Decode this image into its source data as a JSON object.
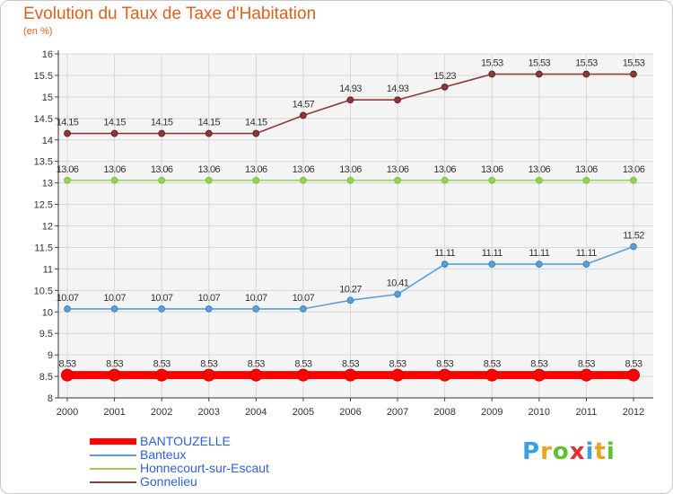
{
  "title": "Evolution du Taux de Taxe d'Habitation",
  "unit_label": "(en %)",
  "logo": {
    "letters": [
      "P",
      "r",
      "o",
      "x",
      "i",
      "t",
      "i"
    ],
    "colors": [
      "#3aa0e0",
      "#f0a020",
      "#60c030",
      "#e03030",
      "#3aa0e0",
      "#f0a020",
      "#60c030"
    ]
  },
  "chart_data": {
    "type": "line",
    "categories": [
      "2000",
      "2001",
      "2002",
      "2003",
      "2004",
      "2005",
      "2006",
      "2007",
      "2008",
      "2009",
      "2010",
      "2011",
      "2012"
    ],
    "ylim": [
      8,
      16
    ],
    "yticks": [
      "8",
      "8.5",
      "9",
      "9.5",
      "10",
      "10.5",
      "11",
      "11.5",
      "12",
      "12.5",
      "13",
      "13.5",
      "14",
      "14.5",
      "15",
      "15.5",
      "16"
    ],
    "grid": true,
    "legend_position": "bottom-left",
    "series": [
      {
        "name": "BANTOUZELLE",
        "color": "#ff0000",
        "thick": true,
        "values": [
          8.53,
          8.53,
          8.53,
          8.53,
          8.53,
          8.53,
          8.53,
          8.53,
          8.53,
          8.53,
          8.53,
          8.53,
          8.53
        ],
        "labels": [
          "8.53",
          "8.53",
          "8.53",
          "8.53",
          "8.53",
          "8.53",
          "8.53",
          "8.53",
          "8.53",
          "8.53",
          "8.53",
          "8.53",
          "8.53"
        ]
      },
      {
        "name": "Banteux",
        "color": "#5b9fd6",
        "marker": "#3a86c8",
        "thick": false,
        "values": [
          10.07,
          10.07,
          10.07,
          10.07,
          10.07,
          10.07,
          10.27,
          10.41,
          11.11,
          11.11,
          11.11,
          11.11,
          11.52
        ],
        "labels": [
          "10.07",
          "10.07",
          "10.07",
          "10.07",
          "10.07",
          "10.07",
          "10.27",
          "10.41",
          "11.11",
          "11.11",
          "11.11",
          "11.11",
          "11.52"
        ]
      },
      {
        "name": "Honnecourt-sur-Escaut",
        "color": "#9acd5a",
        "marker": "#7cc23c",
        "thick": false,
        "values": [
          13.06,
          13.06,
          13.06,
          13.06,
          13.06,
          13.06,
          13.06,
          13.06,
          13.06,
          13.06,
          13.06,
          13.06,
          13.06
        ],
        "labels": [
          "13.06",
          "13.06",
          "13.06",
          "13.06",
          "13.06",
          "13.06",
          "13.06",
          "13.06",
          "13.06",
          "13.06",
          "13.06",
          "13.06",
          "13.06"
        ]
      },
      {
        "name": "Gonnelieu",
        "color": "#8b3a3a",
        "marker": "#6b1f1f",
        "thick": false,
        "values": [
          14.15,
          14.15,
          14.15,
          14.15,
          14.15,
          14.57,
          14.93,
          14.93,
          15.23,
          15.53,
          15.53,
          15.53,
          15.53
        ],
        "labels": [
          "14.15",
          "14.15",
          "14.15",
          "14.15",
          "14.15",
          "14.57",
          "14.93",
          "14.93",
          "15.23",
          "15.53",
          "15.53",
          "15.53",
          "15.53"
        ]
      }
    ]
  }
}
